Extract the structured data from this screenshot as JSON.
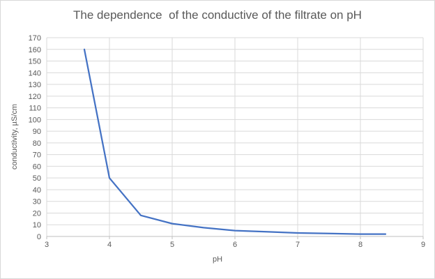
{
  "chart_data": {
    "type": "line",
    "title": "The dependence  of the conductive of the filtrate on pH",
    "xlabel": "pH",
    "ylabel": "conductivity, µS/cm",
    "x": [
      3.6,
      4.0,
      4.5,
      5.0,
      5.5,
      6.0,
      6.5,
      7.0,
      7.5,
      8.0,
      8.4
    ],
    "y": [
      160,
      50,
      18,
      11,
      7.5,
      5,
      4,
      3,
      2.5,
      2,
      2
    ],
    "xlim": [
      3,
      9
    ],
    "ylim": [
      0,
      170
    ],
    "x_tick_step": 1,
    "y_tick_step": 10,
    "x_tick_labels": [
      "3",
      "4",
      "5",
      "6",
      "7",
      "8",
      "9"
    ],
    "y_tick_labels": [
      "0",
      "10",
      "20",
      "30",
      "40",
      "50",
      "60",
      "70",
      "80",
      "90",
      "100",
      "110",
      "120",
      "130",
      "140",
      "150",
      "160",
      "170"
    ],
    "grid": true,
    "legend": false,
    "line_color": "#4472C4",
    "gridline_color": "#D9D9D9",
    "axis_color": "#BFBFBF",
    "text_color": "#595959",
    "background_color": "#FFFFFF",
    "border_color": "#D8D8D8"
  }
}
